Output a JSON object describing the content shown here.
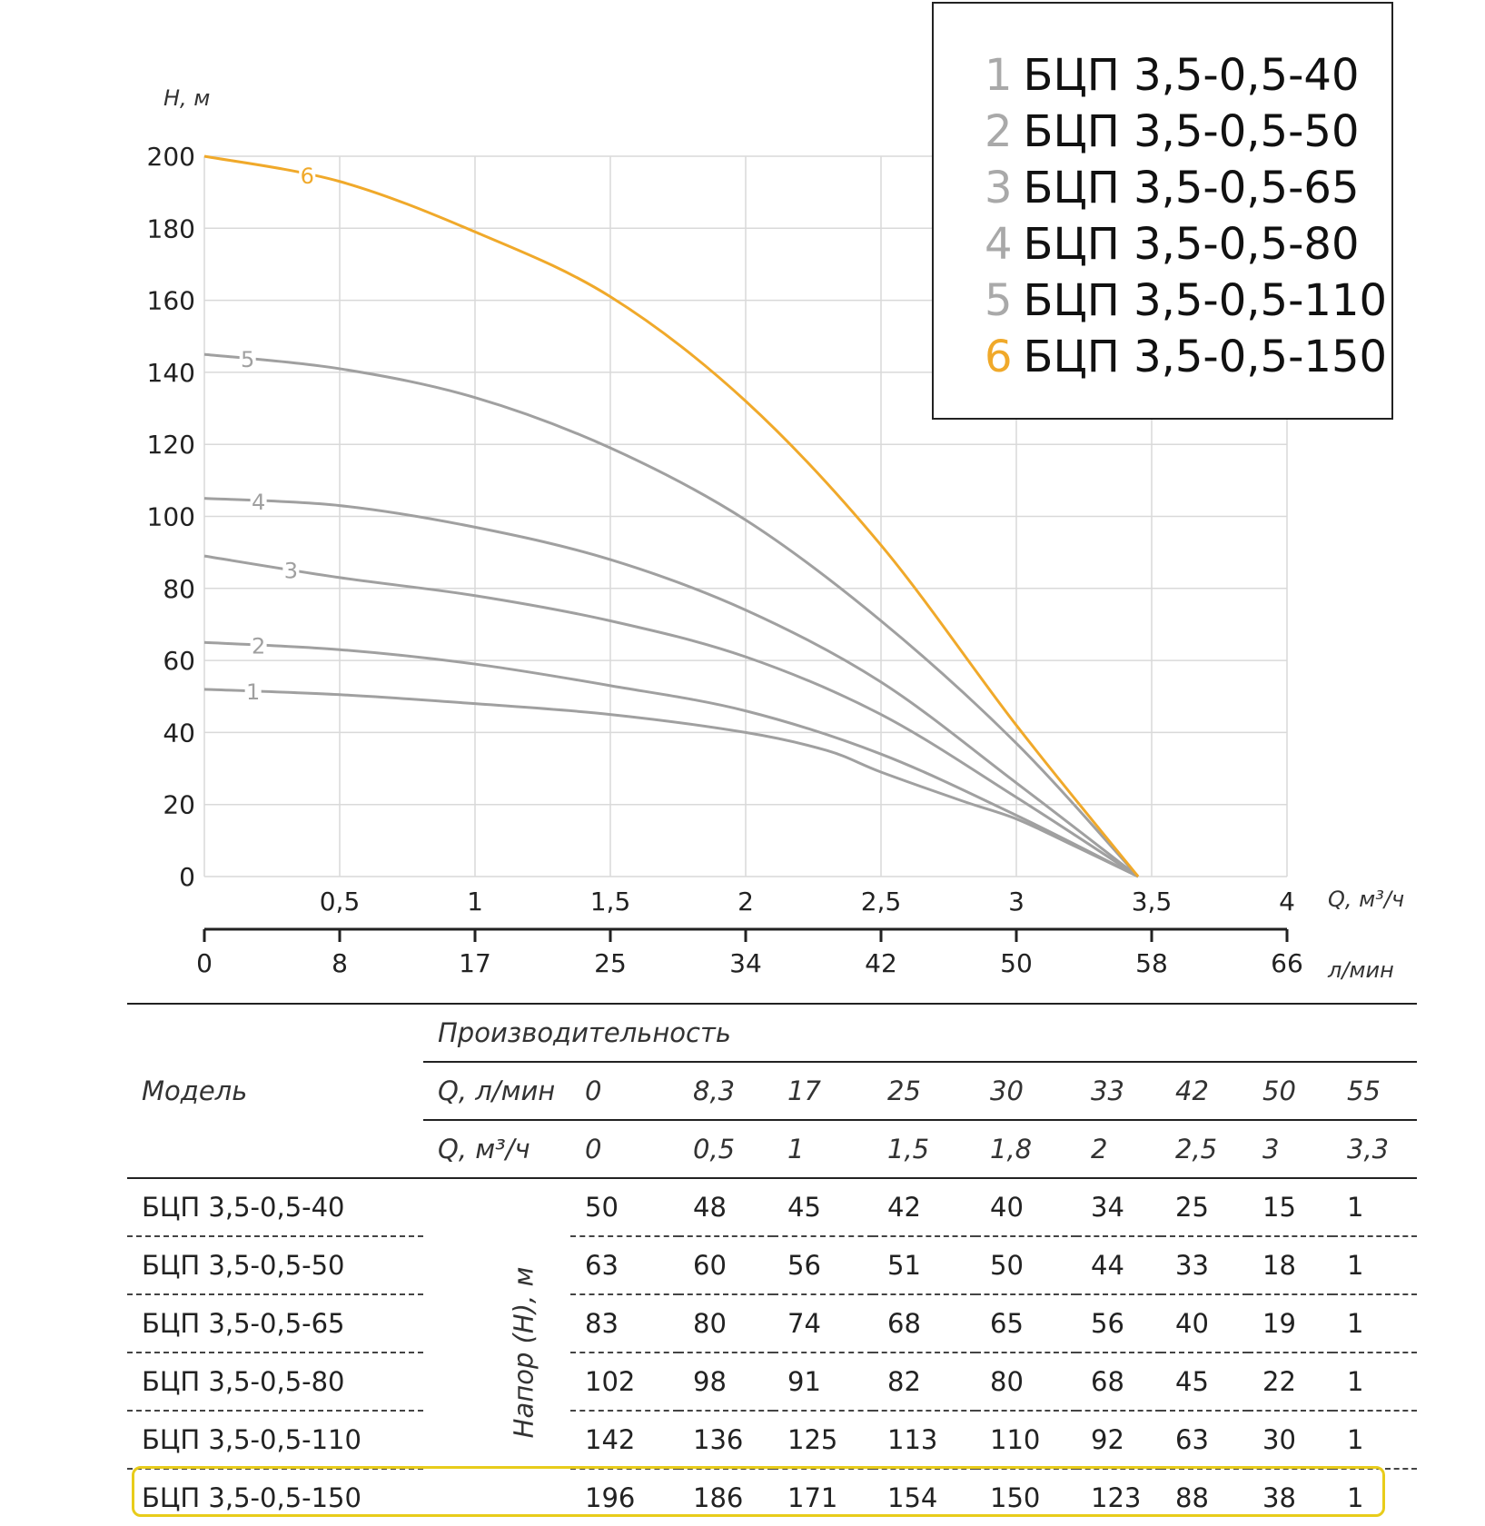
{
  "chart_data": {
    "type": "line",
    "ylabel": "H, м",
    "xlabel": "Q, м³/ч",
    "x2label": "л/мин",
    "xlim": [
      0,
      4
    ],
    "ylim": [
      0,
      200
    ],
    "yticks": [
      0,
      20,
      40,
      60,
      80,
      100,
      120,
      140,
      160,
      180,
      200
    ],
    "xticks": [
      "0,5",
      "1",
      "1,5",
      "2",
      "2,5",
      "3",
      "3,5",
      "4"
    ],
    "xticks_values": [
      0.5,
      1,
      1.5,
      2,
      2.5,
      3,
      3.5,
      4
    ],
    "x2ticks": [
      "0",
      "8",
      "17",
      "25",
      "34",
      "42",
      "50",
      "58",
      "66"
    ],
    "x2ticks_values": [
      0,
      0.5,
      1,
      1.5,
      2,
      2.5,
      3,
      3.5,
      4
    ],
    "grid": true,
    "series": [
      {
        "id": "1",
        "name": "БЦП 3,5-0,5-40",
        "color": "#a0a0a0",
        "label_x": 0.18,
        "x": [
          0,
          0.5,
          1,
          1.5,
          2,
          2.3,
          2.5,
          2.8,
          3,
          3.2,
          3.45
        ],
        "y": [
          52,
          50.5,
          48,
          45,
          40,
          35,
          29,
          21,
          16,
          9,
          0
        ]
      },
      {
        "id": "2",
        "name": "БЦП 3,5-0,5-50",
        "color": "#a0a0a0",
        "label_x": 0.2,
        "x": [
          0,
          0.5,
          1,
          1.5,
          2,
          2.5,
          3,
          3.45
        ],
        "y": [
          65,
          63,
          59,
          53,
          46,
          34,
          17,
          0
        ]
      },
      {
        "id": "3",
        "name": "БЦП 3,5-0,5-65",
        "color": "#a0a0a0",
        "label_x": 0.32,
        "x": [
          0,
          0.5,
          1,
          1.5,
          2,
          2.5,
          3,
          3.45
        ],
        "y": [
          89,
          83,
          78,
          71,
          61,
          45,
          22,
          0
        ]
      },
      {
        "id": "4",
        "name": "БЦП 3,5-0,5-80",
        "color": "#a0a0a0",
        "label_x": 0.2,
        "x": [
          0,
          0.5,
          1,
          1.5,
          2,
          2.5,
          3,
          3.45
        ],
        "y": [
          105,
          103,
          97,
          88,
          74,
          54,
          26,
          0
        ]
      },
      {
        "id": "5",
        "name": "БЦП 3,5-0,5-110",
        "color": "#a0a0a0",
        "label_x": 0.16,
        "x": [
          0,
          0.5,
          1,
          1.5,
          2,
          2.5,
          3,
          3.45
        ],
        "y": [
          145,
          141,
          133,
          119,
          99,
          71,
          37,
          0
        ]
      },
      {
        "id": "6",
        "name": "БЦП 3,5-0,5-150",
        "color": "#f0a92a",
        "label_x": 0.38,
        "x": [
          0,
          0.5,
          1,
          1.5,
          2,
          2.5,
          3,
          3.45
        ],
        "y": [
          200,
          193,
          179,
          161,
          132,
          92,
          42,
          0
        ]
      }
    ]
  },
  "legend": [
    {
      "num": "1",
      "name": "БЦП 3,5-0,5-40"
    },
    {
      "num": "2",
      "name": "БЦП 3,5-0,5-50"
    },
    {
      "num": "3",
      "name": "БЦП 3,5-0,5-65"
    },
    {
      "num": "4",
      "name": "БЦП 3,5-0,5-80"
    },
    {
      "num": "5",
      "name": "БЦП 3,5-0,5-110"
    },
    {
      "num": "6",
      "name": "БЦП 3,5-0,5-150"
    }
  ],
  "table": {
    "header_group": "Производительность",
    "model_label": "Модель",
    "q_lmin_label": "Q, л/мин",
    "q_m3h_label": "Q, м³/ч",
    "head_label": "Напор (Н), м",
    "q_lmin": [
      "0",
      "8,3",
      "17",
      "25",
      "30",
      "33",
      "42",
      "50",
      "55"
    ],
    "q_m3h": [
      "0",
      "0,5",
      "1",
      "1,5",
      "1,8",
      "2",
      "2,5",
      "3",
      "3,3"
    ],
    "rows": [
      {
        "model": "БЦП 3,5-0,5-40",
        "values": [
          "50",
          "48",
          "45",
          "42",
          "40",
          "34",
          "25",
          "15",
          "1"
        ]
      },
      {
        "model": "БЦП 3,5-0,5-50",
        "values": [
          "63",
          "60",
          "56",
          "51",
          "50",
          "44",
          "33",
          "18",
          "1"
        ]
      },
      {
        "model": "БЦП 3,5-0,5-65",
        "values": [
          "83",
          "80",
          "74",
          "68",
          "65",
          "56",
          "40",
          "19",
          "1"
        ]
      },
      {
        "model": "БЦП 3,5-0,5-80",
        "values": [
          "102",
          "98",
          "91",
          "82",
          "80",
          "68",
          "45",
          "22",
          "1"
        ]
      },
      {
        "model": "БЦП 3,5-0,5-110",
        "values": [
          "142",
          "136",
          "125",
          "113",
          "110",
          "92",
          "63",
          "30",
          "1"
        ]
      },
      {
        "model": "БЦП 3,5-0,5-150",
        "values": [
          "196",
          "186",
          "171",
          "154",
          "150",
          "123",
          "88",
          "38",
          "1"
        ]
      }
    ]
  }
}
